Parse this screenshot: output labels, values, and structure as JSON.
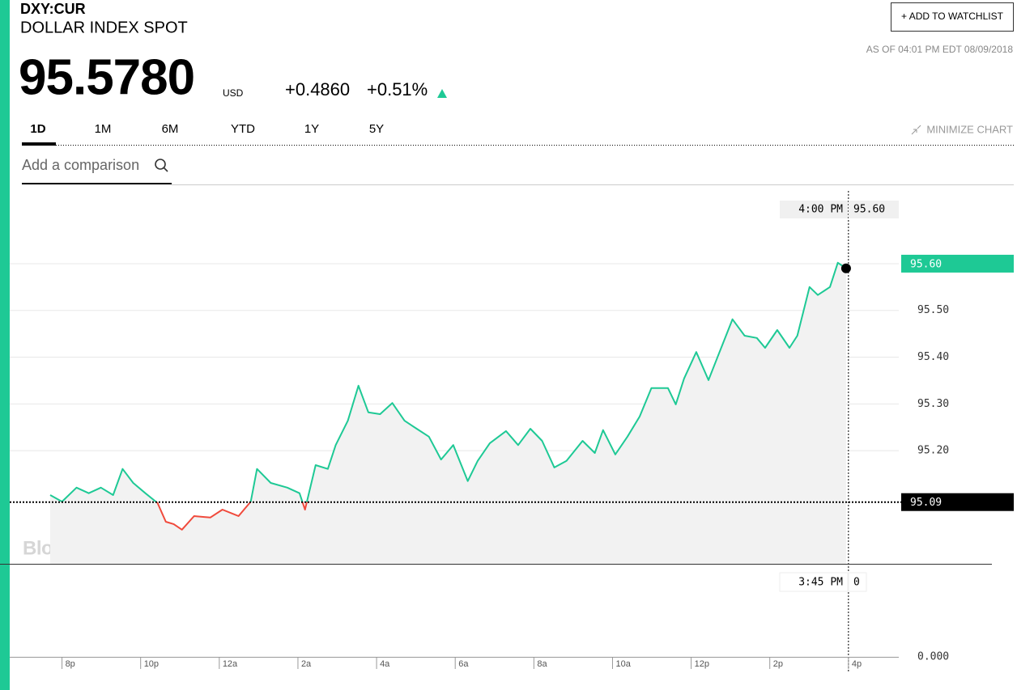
{
  "header": {
    "symbol": "DXY:CUR",
    "name": "DOLLAR INDEX SPOT",
    "price": "95.5780",
    "currency": "USD",
    "change": "+0.4860",
    "change_pct": "+0.51%",
    "as_of": "AS OF 04:01 PM EDT 08/09/2018",
    "watchlist_button": "+ ADD TO WATCHLIST"
  },
  "tabs": [
    "1D",
    "1M",
    "6M",
    "YTD",
    "1Y",
    "5Y"
  ],
  "minimize": "MINIMIZE CHART",
  "comparison_placeholder": "Add a comparison",
  "watermark": "BloombergMarkets",
  "chart_data": {
    "type": "line",
    "x": [
      -0.3,
      0,
      0.37,
      0.68,
      0.99,
      1.3,
      1.54,
      1.81,
      2.12,
      2.43,
      2.64,
      2.84,
      3.05,
      3.36,
      3.77,
      4.08,
      4.49,
      4.8,
      4.96,
      5.31,
      5.73,
      6.04,
      6.18,
      6.45,
      6.76,
      6.96,
      7.27,
      7.54,
      7.79,
      8.09,
      8.4,
      8.71,
      9.02,
      9.33,
      9.64,
      9.95,
      10.32,
      10.57,
      10.88,
      11.29,
      11.6,
      11.91,
      12.21,
      12.52,
      12.83,
      13.24,
      13.55,
      13.76,
      14.07,
      14.38,
      14.69,
      14.99,
      15.41,
      15.61,
      15.82,
      16.13,
      16.44,
      16.75,
      17.05,
      17.36,
      17.67,
      17.88,
      18.19,
      18.5,
      18.7,
      19.01,
      19.22,
      19.53,
      19.73,
      19.94
    ],
    "series": [
      {
        "name": "DXY:CUR",
        "color": "#1ec995",
        "down_color": "#f04a3c",
        "values": [
          95.105,
          95.091,
          95.121,
          95.109,
          95.121,
          95.105,
          95.161,
          95.131,
          95.109,
          95.088,
          95.048,
          95.043,
          95.031,
          95.06,
          95.057,
          95.074,
          95.06,
          95.091,
          95.161,
          95.131,
          95.121,
          95.109,
          95.074,
          95.169,
          95.161,
          95.212,
          95.264,
          95.339,
          95.282,
          95.278,
          95.302,
          95.264,
          95.247,
          95.23,
          95.181,
          95.212,
          95.135,
          95.178,
          95.216,
          95.242,
          95.212,
          95.247,
          95.221,
          95.164,
          95.178,
          95.221,
          95.195,
          95.244,
          95.192,
          95.23,
          95.273,
          95.334,
          95.334,
          95.299,
          95.354,
          95.411,
          95.351,
          95.417,
          95.481,
          95.446,
          95.441,
          95.42,
          95.458,
          95.42,
          95.446,
          95.55,
          95.533,
          95.55,
          95.602,
          95.59
        ]
      }
    ],
    "xlim": [
      -0.3,
      21.28
    ],
    "xticks": [
      {
        "value": 0,
        "label": "8p"
      },
      {
        "value": 2,
        "label": "10p"
      },
      {
        "value": 4,
        "label": "12a"
      },
      {
        "value": 6,
        "label": "2a"
      },
      {
        "value": 8,
        "label": "4a"
      },
      {
        "value": 10,
        "label": "6a"
      },
      {
        "value": 12,
        "label": "8a"
      },
      {
        "value": 14,
        "label": "10a"
      },
      {
        "value": 16,
        "label": "12p"
      },
      {
        "value": 18,
        "label": "2p"
      },
      {
        "value": 20,
        "label": "4p"
      }
    ],
    "ylim": [
      94.958,
      95.766
    ],
    "yticks": [
      {
        "value": 95.2,
        "label": "95.20"
      },
      {
        "value": 95.3,
        "label": "95.30"
      },
      {
        "value": 95.4,
        "label": "95.40"
      },
      {
        "value": 95.5,
        "label": "95.50"
      }
    ],
    "grid": true,
    "previous_close": {
      "value": 95.09,
      "label": "95.09"
    },
    "last_label": {
      "value": 95.6,
      "label": "95.60"
    },
    "crosshair": {
      "time": "4:00 PM",
      "value": "95.60"
    },
    "volume": {
      "time": "3:45 PM",
      "value": "0",
      "axis_label": "0.000"
    }
  }
}
